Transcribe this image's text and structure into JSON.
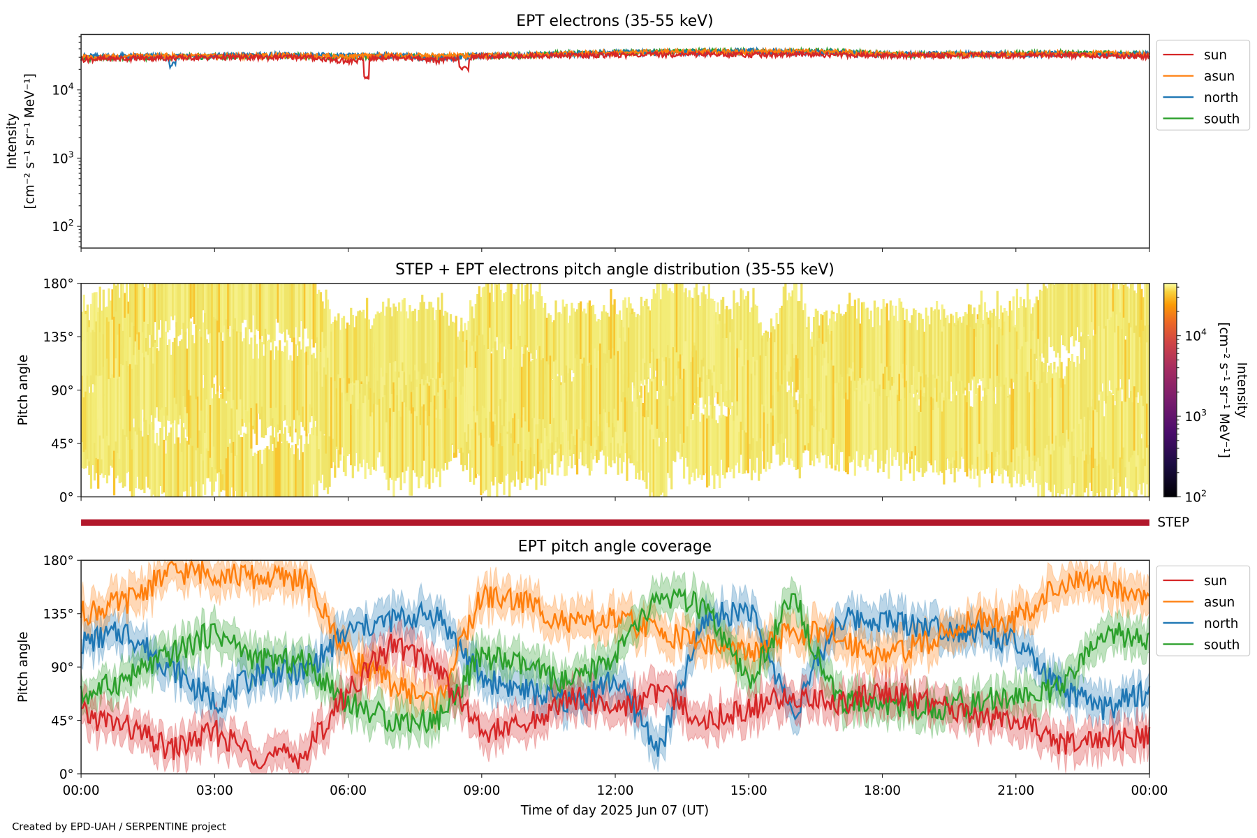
{
  "colors": {
    "sun": "#d62728",
    "asun": "#ff7f0e",
    "north": "#1f77b4",
    "south": "#2ca02c",
    "step": "#b2182b"
  },
  "legend": [
    "sun",
    "asun",
    "north",
    "south"
  ],
  "x_ticks": [
    "00:00",
    "03:00",
    "06:00",
    "09:00",
    "12:00",
    "15:00",
    "18:00",
    "21:00",
    "00:00"
  ],
  "xlabel": "Time of day 2025 Jun 07 (UT)",
  "footer": "Created by EPD-UAH / SERPENTINE project",
  "step_label": "STEP",
  "chart_data": [
    {
      "type": "line",
      "title": "EPT electrons (35-55 keV)",
      "ylabel": [
        "Intensity",
        "[cm⁻² s⁻¹ sr⁻¹ MeV⁻¹]"
      ],
      "yscale": "log",
      "ylim": [
        50,
        65000
      ],
      "y_ticks": [
        {
          "base": "10",
          "exp": "4"
        },
        {
          "base": "10",
          "exp": "3"
        },
        {
          "base": "10",
          "exp": "2"
        }
      ],
      "x_hours": [
        0,
        1,
        2,
        3,
        4,
        5,
        6,
        7,
        8,
        9,
        10,
        11,
        12,
        13,
        14,
        15,
        16,
        17,
        18,
        19,
        20,
        21,
        22,
        23,
        24
      ],
      "legend_position": "outside-right",
      "series": [
        {
          "name": "sun",
          "values": [
            28000,
            29000,
            29500,
            30000,
            30000,
            30500,
            26000,
            31000,
            27000,
            31000,
            31500,
            32000,
            32500,
            33000,
            33500,
            33000,
            33000,
            33000,
            32000,
            32000,
            32000,
            32000,
            32500,
            32000,
            31000
          ]
        },
        {
          "name": "asun",
          "values": [
            30000,
            31000,
            31500,
            31000,
            31500,
            32000,
            31000,
            32000,
            31500,
            32000,
            32500,
            34000,
            35000,
            36000,
            36500,
            36000,
            36000,
            36000,
            34000,
            33000,
            33000,
            33500,
            34000,
            34000,
            33000
          ]
        },
        {
          "name": "north",
          "values": [
            31000,
            31500,
            31000,
            32000,
            32500,
            32500,
            31500,
            32500,
            29000,
            32000,
            32500,
            34000,
            35000,
            35500,
            36000,
            37000,
            36000,
            35000,
            33000,
            33500,
            33500,
            33000,
            34000,
            33500,
            33000
          ]
        },
        {
          "name": "south",
          "values": [
            29000,
            30000,
            30500,
            31000,
            31000,
            31500,
            30000,
            31500,
            30000,
            31500,
            32000,
            34500,
            35500,
            36500,
            37000,
            36500,
            36500,
            37000,
            33500,
            33000,
            33500,
            34000,
            35000,
            34500,
            33500
          ]
        }
      ]
    },
    {
      "type": "heatmap",
      "title": "STEP + EPT electrons pitch angle distribution (35-55 keV)",
      "ylabel": "Pitch angle",
      "y_ticks": [
        "180°",
        "135°",
        "90°",
        "45°",
        "0°"
      ],
      "ylim": [
        0,
        180
      ],
      "colorbar": {
        "label": [
          "Intensity",
          "[cm⁻² s⁻¹ sr⁻¹ MeV⁻¹]"
        ],
        "scale": "log",
        "range": [
          100,
          45000
        ],
        "ticks": [
          {
            "base": "10",
            "exp": "4"
          },
          {
            "base": "10",
            "exp": "3"
          },
          {
            "base": "10",
            "exp": "2"
          }
        ],
        "colormap": "inferno"
      }
    },
    {
      "type": "line",
      "title": "EPT pitch angle coverage",
      "ylabel": "Pitch angle",
      "y_ticks": [
        "180°",
        "135°",
        "90°",
        "45°",
        "0°"
      ],
      "ylim": [
        0,
        180
      ],
      "x_hours": [
        0,
        1,
        2,
        3,
        4,
        5,
        6,
        7,
        8,
        9,
        10,
        11,
        12,
        13,
        14,
        15,
        16,
        17,
        18,
        19,
        20,
        21,
        22,
        23,
        24
      ],
      "legend_position": "outside-right",
      "series": [
        {
          "name": "sun",
          "values": [
            50,
            40,
            20,
            35,
            15,
            15,
            70,
            110,
            90,
            35,
            40,
            65,
            55,
            70,
            45,
            55,
            65,
            60,
            70,
            60,
            50,
            45,
            25,
            30,
            30
          ]
        },
        {
          "name": "asun",
          "values": [
            135,
            145,
            170,
            170,
            165,
            165,
            100,
            75,
            60,
            150,
            145,
            125,
            130,
            120,
            110,
            100,
            120,
            115,
            100,
            110,
            130,
            130,
            160,
            160,
            150
          ]
        },
        {
          "name": "north",
          "values": [
            110,
            120,
            90,
            60,
            85,
            85,
            120,
            130,
            135,
            80,
            70,
            60,
            80,
            20,
            130,
            140,
            50,
            130,
            130,
            125,
            120,
            110,
            70,
            55,
            70
          ]
        },
        {
          "name": "south",
          "values": [
            65,
            80,
            100,
            120,
            95,
            95,
            60,
            45,
            45,
            100,
            90,
            75,
            100,
            150,
            140,
            75,
            150,
            60,
            60,
            55,
            60,
            65,
            70,
            120,
            110
          ]
        }
      ]
    }
  ]
}
